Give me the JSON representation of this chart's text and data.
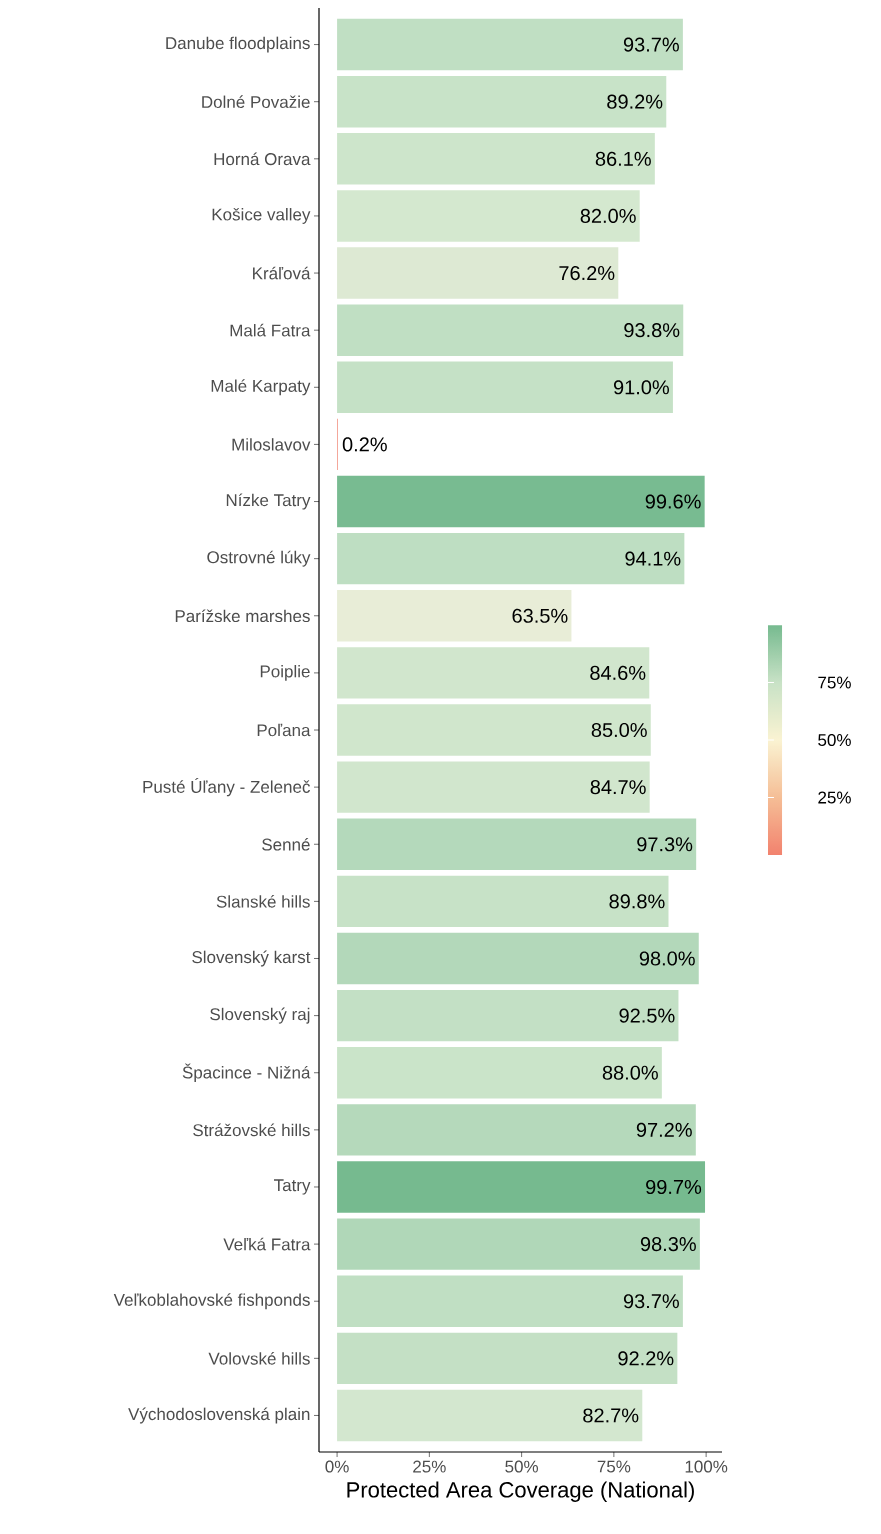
{
  "chart_data": {
    "type": "bar",
    "orientation": "horizontal",
    "xlabel": "Protected Area Coverage (National)",
    "categories": [
      "Danube floodplains",
      "Dolné Považie",
      "Horná Orava",
      "Košice valley",
      "Kráľová",
      "Malá Fatra",
      "Malé Karpaty",
      "Miloslavov",
      "Nízke Tatry",
      "Ostrovné lúky",
      "Parížske marshes",
      "Poiplie",
      "Poľana",
      "Pusté Úľany - Zeleneč",
      "Senné",
      "Slanské hills",
      "Slovenský karst",
      "Slovenský raj",
      "Špacince - Nižná",
      "Strážovské hills",
      "Tatry",
      "Veľká Fatra",
      "Veľkoblahovské fishponds",
      "Volovské hills",
      "Východoslovenská plain"
    ],
    "values": [
      93.7,
      89.2,
      86.1,
      82.0,
      76.2,
      93.8,
      91.0,
      0.2,
      99.6,
      94.1,
      63.5,
      84.6,
      85.0,
      84.7,
      97.3,
      89.8,
      98.0,
      92.5,
      88.0,
      97.2,
      99.7,
      98.3,
      93.7,
      92.2,
      82.7
    ],
    "value_labels": [
      "93.7%",
      "89.2%",
      "86.1%",
      "82.0%",
      "76.2%",
      "93.8%",
      "91.0%",
      "0.2%",
      "99.6%",
      "94.1%",
      "63.5%",
      "84.6%",
      "85.0%",
      "84.7%",
      "97.3%",
      "89.8%",
      "98.0%",
      "92.5%",
      "88.0%",
      "97.2%",
      "99.7%",
      "98.3%",
      "93.7%",
      "92.2%",
      "82.7%"
    ],
    "colors": [
      "#c0dfc3",
      "#c8e3c8",
      "#cde5cb",
      "#d4e8cf",
      "#dde9d3",
      "#c0dfc3",
      "#c5e1c6",
      "#f08878",
      "#78bb91",
      "#bedec2",
      "#e8edd7",
      "#d1e6cd",
      "#d0e6cc",
      "#d1e6cd",
      "#b4d9bb",
      "#c7e2c7",
      "#b3d8ba",
      "#c3e0c5",
      "#cae4c9",
      "#b5d9bb",
      "#76ba8f",
      "#b0d7b8",
      "#c0dfc3",
      "#c4e0c5",
      "#d3e7cf"
    ],
    "xlim": [
      -4.9,
      104.3
    ],
    "xticks": [
      {
        "value": 0,
        "label": "0%"
      },
      {
        "value": 25,
        "label": "25%"
      },
      {
        "value": 50,
        "label": "50%"
      },
      {
        "value": 75,
        "label": "75%"
      },
      {
        "value": 100,
        "label": "100%"
      }
    ],
    "clim": [
      0,
      100
    ],
    "cticks": [
      {
        "value": 25,
        "label": "25%"
      },
      {
        "value": 50,
        "label": "50%"
      },
      {
        "value": 75,
        "label": "75%"
      }
    ]
  }
}
